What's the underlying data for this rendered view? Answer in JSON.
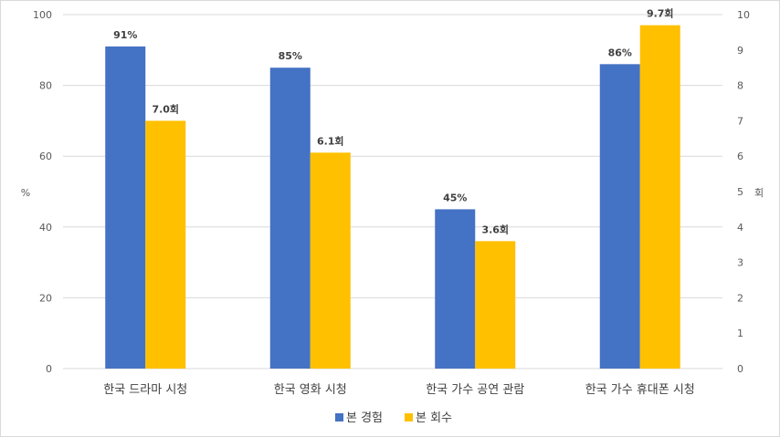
{
  "chart_data": {
    "type": "bar",
    "categories": [
      "한국 드라마 시청",
      "한국 영화 시청",
      "한국 가수 공연 관람",
      "한국 가수 휴대폰 시청"
    ],
    "series": [
      {
        "name": "본 경험",
        "axis": "left",
        "values": [
          91,
          85,
          45,
          86
        ],
        "labels": [
          "91%",
          "85%",
          "45%",
          "86%"
        ],
        "color": "#4472C4"
      },
      {
        "name": "본 회수",
        "axis": "right",
        "values": [
          7.0,
          6.1,
          3.6,
          9.7
        ],
        "labels": [
          "7.0회",
          "6.1회",
          "3.6회",
          "9.7회"
        ],
        "color": "#FFC000"
      }
    ],
    "ylabel": "%",
    "y2label": "회",
    "ylim": [
      0,
      100
    ],
    "y2lim": [
      0,
      10
    ],
    "yticks": [
      0,
      20,
      40,
      60,
      80,
      100
    ],
    "y2ticks": [
      0,
      1,
      2,
      3,
      4,
      5,
      6,
      7,
      8,
      9,
      10
    ],
    "gridlines": true,
    "legend_position": "bottom"
  }
}
